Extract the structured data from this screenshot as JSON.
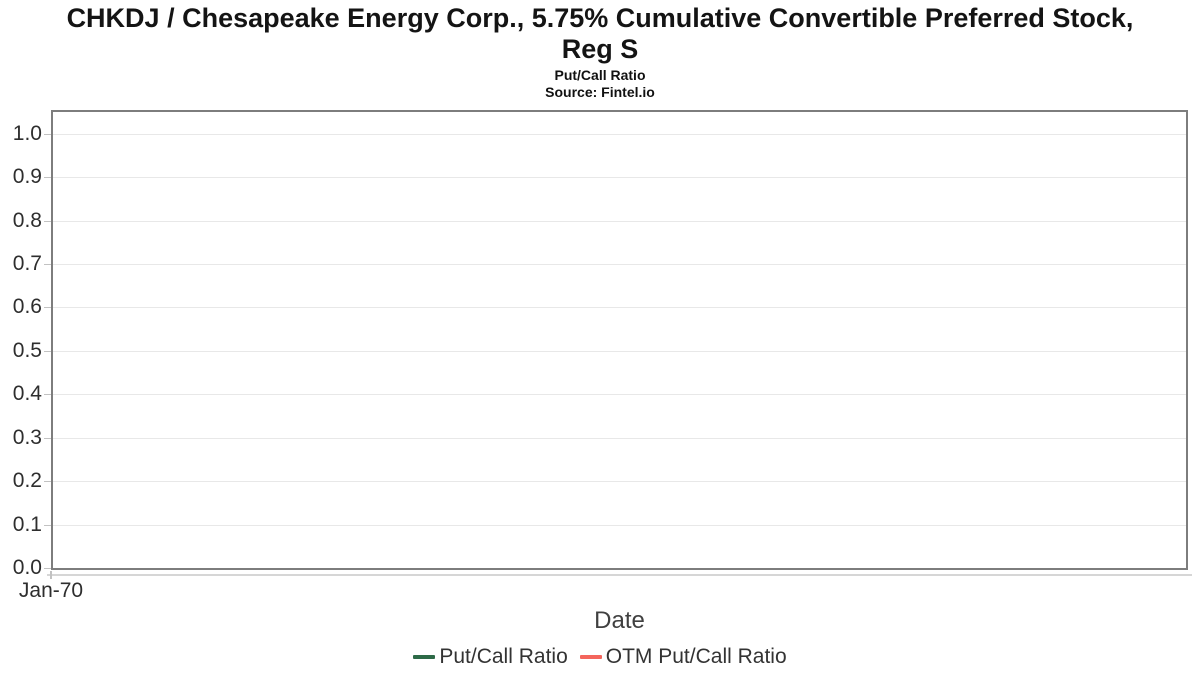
{
  "header": {
    "title_line1": "CHKDJ / Chesapeake Energy Corp., 5.75% Cumulative Convertible Preferred Stock,",
    "title_line2": "Reg S",
    "subtitle": "Put/Call Ratio",
    "source": "Source: Fintel.io"
  },
  "chart_data": {
    "type": "line",
    "title": "CHKDJ / Chesapeake Energy Corp., 5.75% Cumulative Convertible Preferred Stock, Reg S",
    "subtitle": "Put/Call Ratio",
    "source": "Source: Fintel.io",
    "xlabel": "Date",
    "ylabel": "",
    "ylim": [
      0.0,
      1.05
    ],
    "yticks": [
      "1.0",
      "0.9",
      "0.8",
      "0.7",
      "0.6",
      "0.5",
      "0.4",
      "0.3",
      "0.2",
      "0.1",
      "0.0"
    ],
    "xticks": [
      "Jan-70"
    ],
    "grid": "horizontal-only",
    "legend_position": "bottom",
    "plot_background": "#ffffff",
    "series": [
      {
        "name": "Put/Call Ratio",
        "color": "#2d6a47",
        "x": [],
        "values": []
      },
      {
        "name": "OTM Put/Call Ratio",
        "color": "#f4655c",
        "x": [],
        "values": []
      }
    ]
  },
  "colors": {
    "plot_border": "#7d7d7d",
    "gridline": "#e8e8e8",
    "tick": "#c2c2c2",
    "tick_label": "#2e2e2e",
    "axis_title": "#404040",
    "legend_text": "#333333",
    "title_text": "#141414"
  }
}
